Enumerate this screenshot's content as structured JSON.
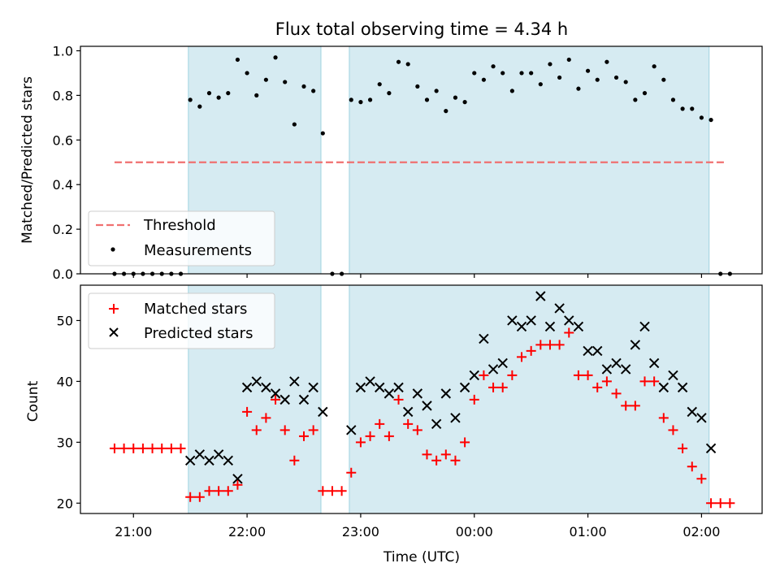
{
  "chart_data": [
    {
      "type": "scatter",
      "title": "Flux total observing time = 4.34 h",
      "xlabel": "",
      "ylabel": "Matched/Predicted stars",
      "ylim": [
        0,
        1.02
      ],
      "yticks": [
        "0.0",
        "0.2",
        "0.4",
        "0.6",
        "0.8",
        "1.0"
      ],
      "xtick_labels": [
        "21:00",
        "22:00",
        "23:00",
        "00:00",
        "01:00",
        "02:00"
      ],
      "x_range": [
        "20:32",
        "02:32"
      ],
      "shaded_intervals": [
        [
          "21:29",
          "22:39"
        ],
        [
          "22:54",
          "02:04"
        ]
      ],
      "threshold": {
        "name": "Threshold",
        "value": 0.5,
        "x_range": [
          "20:50",
          "02:13"
        ],
        "color": "#f07070",
        "style": "dashed"
      },
      "legend": {
        "position": "lower-left",
        "entries": [
          "Threshold",
          "Measurements"
        ]
      },
      "series": [
        {
          "name": "Measurements",
          "color": "#000000",
          "marker": "dot",
          "x": [
            "20:50",
            "20:55",
            "21:00",
            "21:05",
            "21:10",
            "21:15",
            "21:20",
            "21:25",
            "21:30",
            "21:35",
            "21:40",
            "21:45",
            "21:50",
            "21:55",
            "22:00",
            "22:05",
            "22:10",
            "22:15",
            "22:20",
            "22:25",
            "22:30",
            "22:35",
            "22:40",
            "22:45",
            "22:50",
            "22:55",
            "23:00",
            "23:05",
            "23:10",
            "23:15",
            "23:20",
            "23:25",
            "23:30",
            "23:35",
            "23:40",
            "23:45",
            "23:50",
            "23:55",
            "00:00",
            "00:05",
            "00:10",
            "00:15",
            "00:20",
            "00:25",
            "00:30",
            "00:35",
            "00:40",
            "00:45",
            "00:50",
            "00:55",
            "01:00",
            "01:05",
            "01:10",
            "01:15",
            "01:20",
            "01:25",
            "01:30",
            "01:35",
            "01:40",
            "01:45",
            "01:50",
            "01:55",
            "02:00",
            "02:05",
            "02:10",
            "02:15"
          ],
          "y": [
            0,
            0,
            0,
            0,
            0,
            0,
            0,
            0,
            0.78,
            0.75,
            0.81,
            0.79,
            0.81,
            0.96,
            0.9,
            0.8,
            0.87,
            0.97,
            0.86,
            0.67,
            0.84,
            0.82,
            0.63,
            0,
            0,
            0.78,
            0.77,
            0.78,
            0.85,
            0.81,
            0.95,
            0.94,
            0.84,
            0.78,
            0.82,
            0.73,
            0.79,
            0.77,
            0.9,
            0.87,
            0.93,
            0.9,
            0.82,
            0.9,
            0.9,
            0.85,
            0.94,
            0.88,
            0.96,
            0.83,
            0.91,
            0.87,
            0.95,
            0.88,
            0.86,
            0.78,
            0.81,
            0.93,
            0.87,
            0.78,
            0.74,
            0.74,
            0.7,
            0.69,
            0,
            0
          ]
        }
      ]
    },
    {
      "type": "scatter",
      "title": "",
      "xlabel": "Time (UTC)",
      "ylabel": "Count",
      "ylim": [
        18.3,
        55.8
      ],
      "yticks": [
        "20",
        "30",
        "40",
        "50"
      ],
      "xtick_labels": [
        "21:00",
        "22:00",
        "23:00",
        "00:00",
        "01:00",
        "02:00"
      ],
      "x_range": [
        "20:32",
        "02:32"
      ],
      "shaded_intervals": [
        [
          "21:29",
          "22:39"
        ],
        [
          "22:54",
          "02:04"
        ]
      ],
      "legend": {
        "position": "upper-left",
        "entries": [
          "Matched stars",
          "Predicted stars"
        ]
      },
      "series": [
        {
          "name": "Matched stars",
          "color": "#ff0000",
          "marker": "plus",
          "x": [
            "20:50",
            "20:55",
            "21:00",
            "21:05",
            "21:10",
            "21:15",
            "21:20",
            "21:25",
            "21:30",
            "21:35",
            "21:40",
            "21:45",
            "21:50",
            "21:55",
            "22:00",
            "22:05",
            "22:10",
            "22:15",
            "22:20",
            "22:25",
            "22:30",
            "22:35",
            "22:40",
            "22:45",
            "22:50",
            "22:55",
            "23:00",
            "23:05",
            "23:10",
            "23:15",
            "23:20",
            "23:25",
            "23:30",
            "23:35",
            "23:40",
            "23:45",
            "23:50",
            "23:55",
            "00:00",
            "00:05",
            "00:10",
            "00:15",
            "00:20",
            "00:25",
            "00:30",
            "00:35",
            "00:40",
            "00:45",
            "00:50",
            "00:55",
            "01:00",
            "01:05",
            "01:10",
            "01:15",
            "01:20",
            "01:25",
            "01:30",
            "01:35",
            "01:40",
            "01:45",
            "01:50",
            "01:55",
            "02:00",
            "02:05",
            "02:10",
            "02:15"
          ],
          "y": [
            29,
            29,
            29,
            29,
            29,
            29,
            29,
            29,
            21,
            21,
            22,
            22,
            22,
            23,
            35,
            32,
            34,
            37,
            32,
            27,
            31,
            32,
            22,
            22,
            22,
            25,
            30,
            31,
            33,
            31,
            37,
            33,
            32,
            28,
            27,
            28,
            27,
            30,
            37,
            41,
            39,
            39,
            41,
            44,
            45,
            46,
            46,
            46,
            48,
            41,
            41,
            39,
            40,
            38,
            36,
            36,
            40,
            40,
            34,
            32,
            29,
            26,
            24,
            20,
            20,
            20
          ]
        },
        {
          "name": "Predicted stars",
          "color": "#000000",
          "marker": "x",
          "x": [
            "21:30",
            "21:35",
            "21:40",
            "21:45",
            "21:50",
            "21:55",
            "22:00",
            "22:05",
            "22:10",
            "22:15",
            "22:20",
            "22:25",
            "22:30",
            "22:35",
            "22:40",
            "22:55",
            "23:00",
            "23:05",
            "23:10",
            "23:15",
            "23:20",
            "23:25",
            "23:30",
            "23:35",
            "23:40",
            "23:45",
            "23:50",
            "23:55",
            "00:00",
            "00:05",
            "00:10",
            "00:15",
            "00:20",
            "00:25",
            "00:30",
            "00:35",
            "00:40",
            "00:45",
            "00:50",
            "00:55",
            "01:00",
            "01:05",
            "01:10",
            "01:15",
            "01:20",
            "01:25",
            "01:30",
            "01:35",
            "01:40",
            "01:45",
            "01:50",
            "01:55",
            "02:00",
            "02:05"
          ],
          "y": [
            27,
            28,
            27,
            28,
            27,
            24,
            39,
            40,
            39,
            38,
            37,
            40,
            37,
            39,
            35,
            32,
            39,
            40,
            39,
            38,
            39,
            35,
            38,
            36,
            33,
            38,
            34,
            39,
            41,
            47,
            42,
            43,
            50,
            49,
            50,
            54,
            49,
            52,
            50,
            49,
            45,
            45,
            42,
            43,
            42,
            46,
            49,
            43,
            39,
            41,
            39,
            35,
            34,
            29
          ]
        }
      ]
    }
  ]
}
